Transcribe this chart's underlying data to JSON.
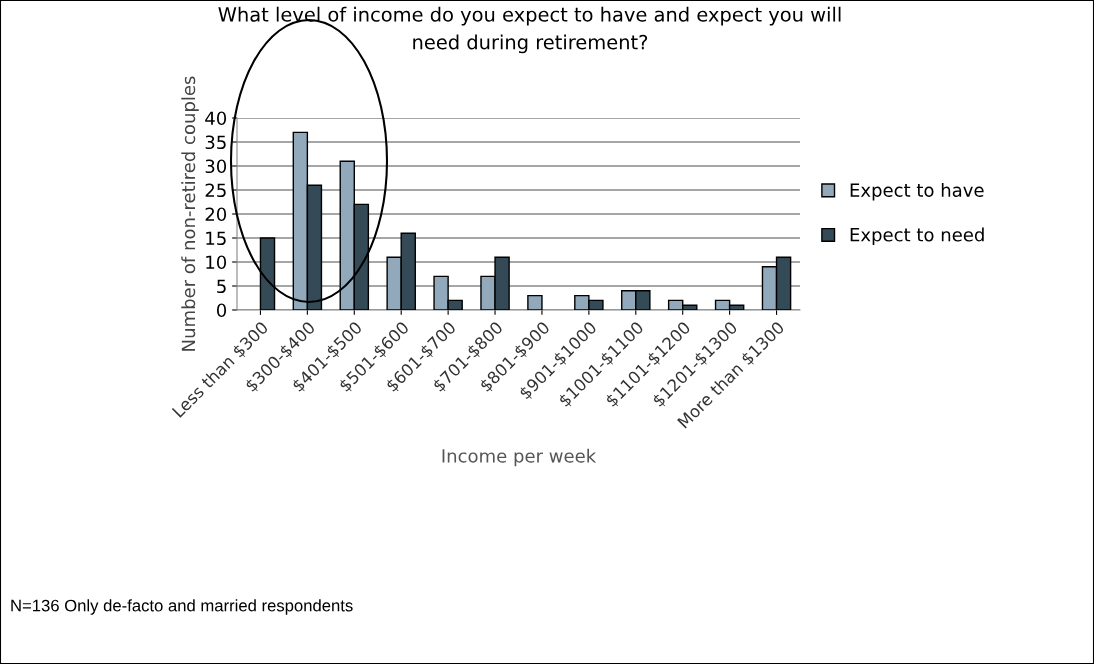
{
  "chart_data": {
    "type": "bar",
    "title": "What level of income do you expect to have and expect you will\nneed during retirement?",
    "xlabel": "Income per week",
    "ylabel": "Number of non-retired couples",
    "categories": [
      "Less than $300",
      "$300-$400",
      "$401-$500",
      "$501-$600",
      "$601-$700",
      "$701-$800",
      "$801-$900",
      "$901-$1000",
      "$1001-$1100",
      "$1101-$1200",
      "$1201-$1300",
      "More than $1300"
    ],
    "series": [
      {
        "name": "Expect to have",
        "color": "#91a9bb",
        "values": [
          null,
          37,
          31,
          11,
          7,
          7,
          3,
          3,
          4,
          2,
          2,
          9
        ]
      },
      {
        "name": "Expect to need",
        "color": "#354a57",
        "values": [
          15,
          26,
          22,
          16,
          2,
          11,
          null,
          2,
          4,
          1,
          1,
          11
        ]
      }
    ],
    "ylim": [
      0,
      40
    ],
    "yticks": [
      0,
      5,
      10,
      15,
      20,
      25,
      30,
      35,
      40
    ],
    "grid": "y",
    "legend": "right",
    "annotations": [
      "N=136 Only de-facto and married respondents"
    ]
  }
}
